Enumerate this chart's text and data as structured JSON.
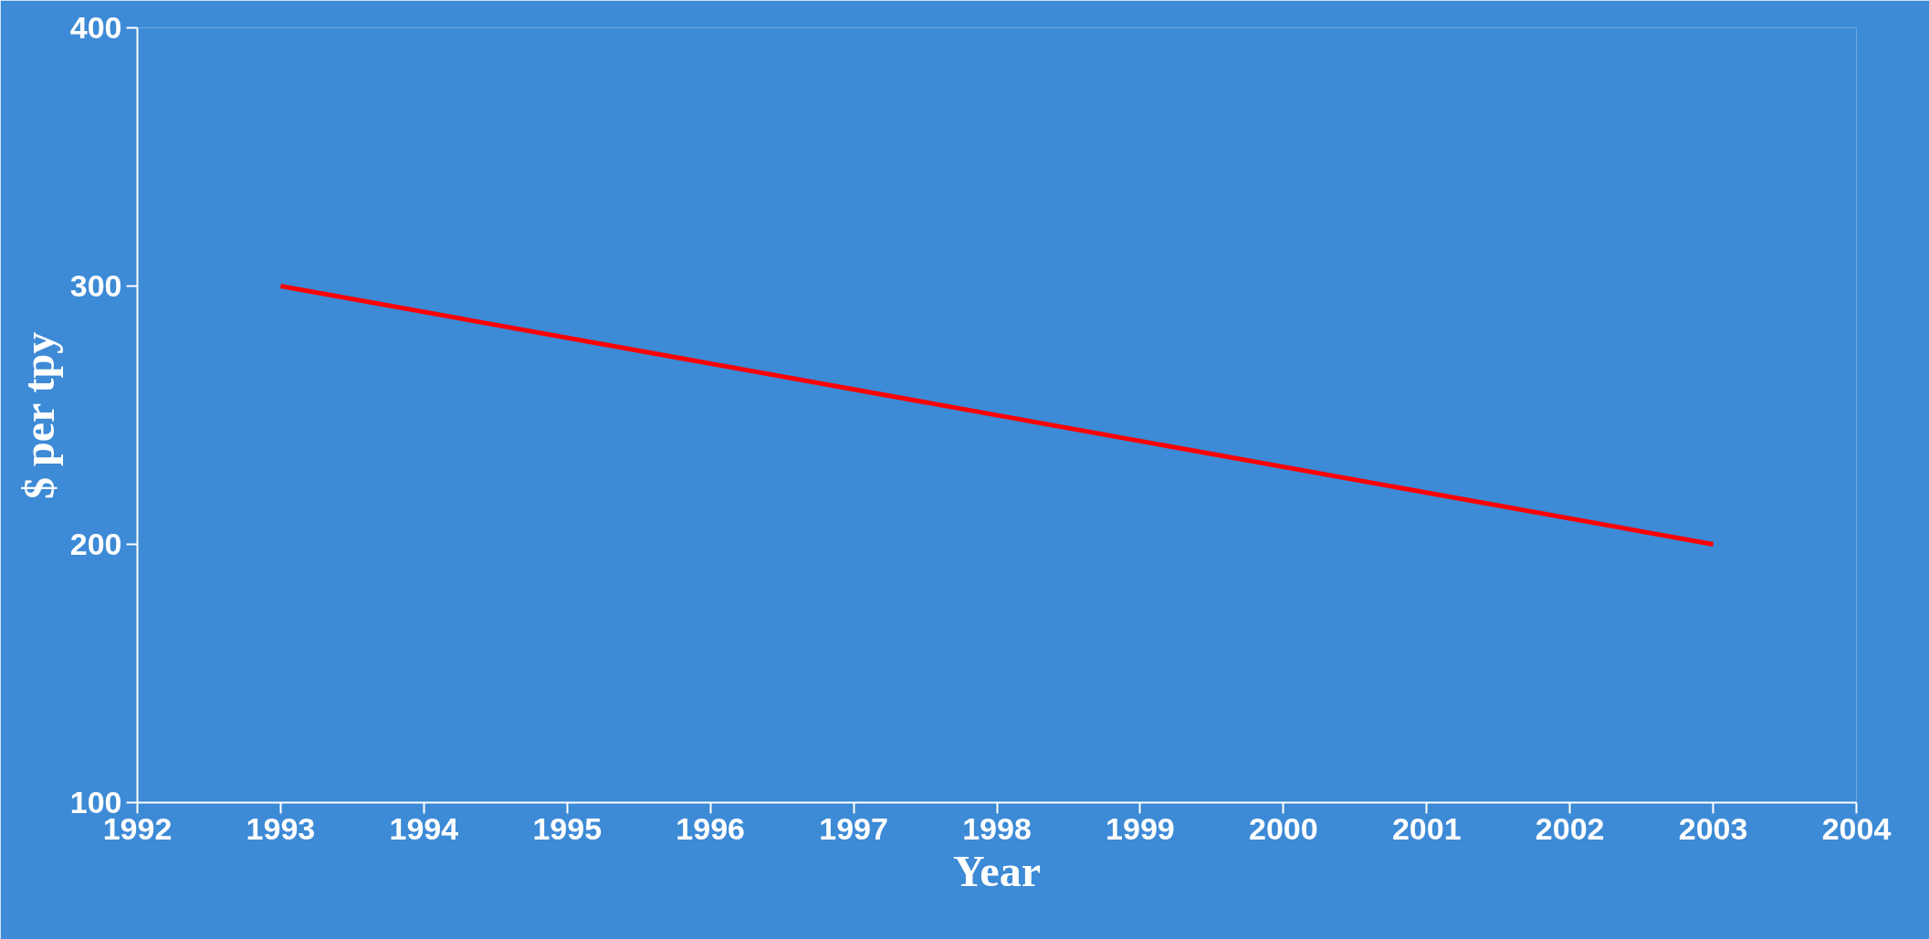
{
  "chart_data": {
    "type": "line",
    "xlabel": "Year",
    "ylabel": "$ per tpy",
    "x": [
      1993,
      2003
    ],
    "series": [
      {
        "color": "#ff0000",
        "values": [
          300,
          200
        ]
      }
    ],
    "xlim": [
      1992,
      2004
    ],
    "xticks": [
      1992,
      1993,
      1994,
      1995,
      1996,
      1997,
      1998,
      1999,
      2000,
      2001,
      2002,
      2003,
      2004
    ],
    "ylim": [
      100,
      400
    ],
    "yticks": [
      100,
      200,
      300,
      400
    ],
    "grid": false,
    "marker": "none",
    "line_style": "solid"
  }
}
